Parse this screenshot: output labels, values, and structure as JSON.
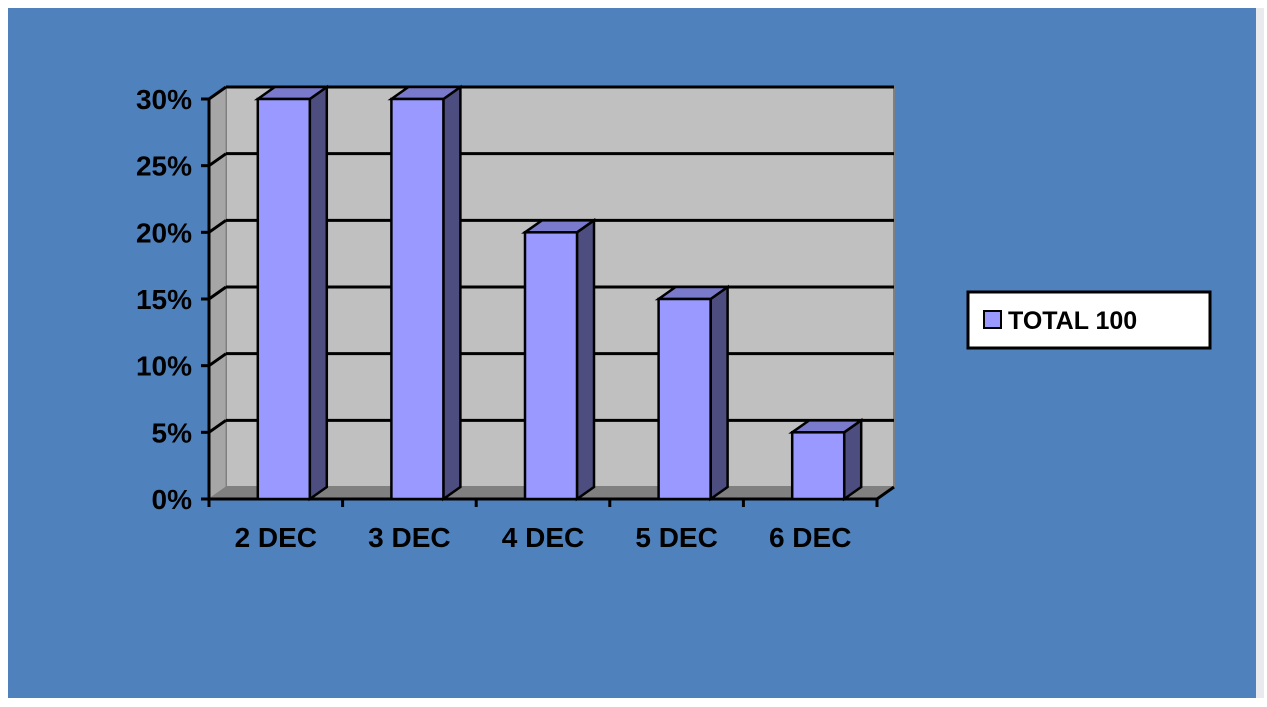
{
  "chart_data": {
    "type": "bar",
    "categories": [
      "2 DEC",
      "3 DEC",
      "4 DEC",
      "5 DEC",
      "6 DEC"
    ],
    "series": [
      {
        "name": "TOTAL 100",
        "values": [
          30,
          30,
          20,
          15,
          5
        ]
      }
    ],
    "y_ticks": [
      "0%",
      "5%",
      "10%",
      "15%",
      "20%",
      "25%",
      "30%"
    ],
    "ylim": [
      0,
      30
    ],
    "y_unit": "%",
    "grid": true,
    "three_d": true,
    "legend_position": "right",
    "colors": {
      "background": "#4f81bd",
      "plot_area": "#c0c0c0",
      "bar_front": "#9999ff",
      "bar_side": "#4d4d80",
      "bar_top": "#7a7acc",
      "floor": "#808080"
    }
  }
}
